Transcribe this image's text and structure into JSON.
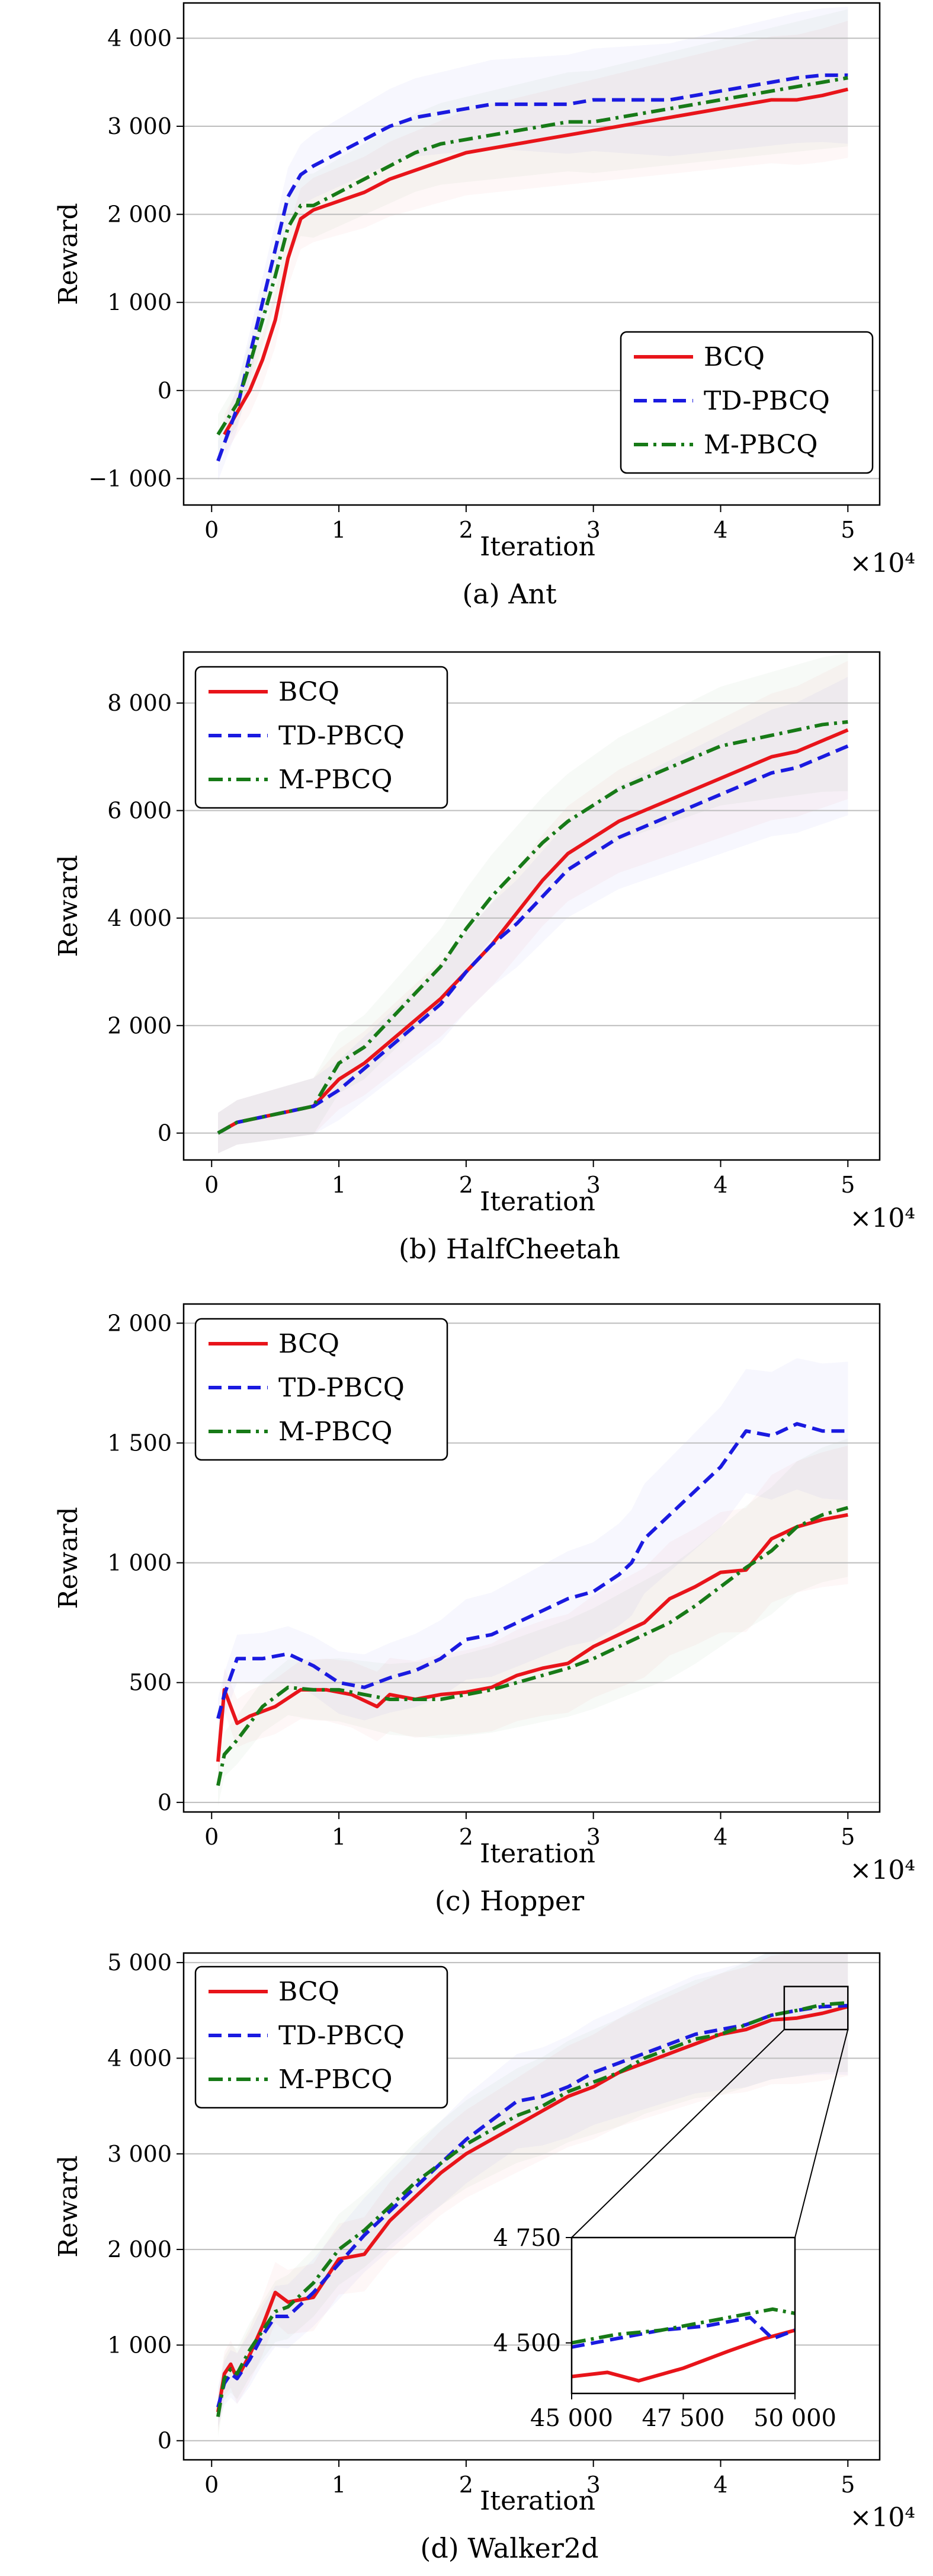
{
  "colors": {
    "BCQ": "#e8141a",
    "TD-PBCQ": "#1a1ae0",
    "M-PBCQ": "#177a17",
    "grid": "#bdbdbd"
  },
  "chart_data": [
    {
      "type": "line",
      "caption": "(a) Ant",
      "xlabel": "Iteration",
      "ylabel": "Reward",
      "multiplier": "×10⁴",
      "xlim": [
        -0.22,
        5.25
      ],
      "ylim": [
        -1300,
        4400
      ],
      "xticks": [
        0,
        1,
        2,
        3,
        4,
        5
      ],
      "xtick_labels": [
        "0",
        "1",
        "2",
        "3",
        "4",
        "5"
      ],
      "yticks": [
        -1000,
        0,
        1000,
        2000,
        3000,
        4000
      ],
      "ytick_labels": [
        "−1 000",
        "0",
        "1 000",
        "2 000",
        "3 000",
        "4 000"
      ],
      "grid": "horizontal",
      "legend": "lower-right",
      "series": [
        {
          "name": "BCQ",
          "style": "solid",
          "x": [
            0.1,
            0.2,
            0.3,
            0.4,
            0.5,
            0.6,
            0.7,
            0.8,
            1.0,
            1.2,
            1.4,
            1.6,
            1.8,
            2.0,
            2.2,
            2.4,
            2.6,
            2.8,
            3.0,
            3.2,
            3.4,
            3.6,
            3.8,
            4.0,
            4.2,
            4.4,
            4.6,
            4.8,
            5.0
          ],
          "y": [
            -500,
            -250,
            0,
            350,
            800,
            1500,
            1950,
            2050,
            2150,
            2250,
            2400,
            2500,
            2600,
            2700,
            2750,
            2800,
            2850,
            2900,
            2950,
            3000,
            3050,
            3100,
            3150,
            3200,
            3250,
            3300,
            3300,
            3350,
            3420
          ]
        },
        {
          "name": "TD-PBCQ",
          "style": "dashed",
          "x": [
            0.05,
            0.2,
            0.3,
            0.4,
            0.5,
            0.6,
            0.7,
            0.8,
            1.0,
            1.2,
            1.4,
            1.6,
            1.8,
            2.0,
            2.2,
            2.4,
            2.6,
            2.8,
            3.0,
            3.2,
            3.4,
            3.6,
            3.8,
            4.0,
            4.2,
            4.4,
            4.6,
            4.8,
            5.0
          ],
          "y": [
            -800,
            -200,
            400,
            1000,
            1600,
            2200,
            2450,
            2550,
            2700,
            2850,
            3000,
            3100,
            3150,
            3200,
            3250,
            3250,
            3250,
            3250,
            3300,
            3300,
            3300,
            3300,
            3350,
            3400,
            3450,
            3500,
            3550,
            3580,
            3580
          ]
        },
        {
          "name": "M-PBCQ",
          "style": "dashdot",
          "x": [
            0.05,
            0.2,
            0.3,
            0.4,
            0.5,
            0.6,
            0.7,
            0.8,
            1.0,
            1.2,
            1.4,
            1.6,
            1.8,
            2.0,
            2.2,
            2.4,
            2.6,
            2.8,
            3.0,
            3.2,
            3.4,
            3.6,
            3.8,
            4.0,
            4.2,
            4.4,
            4.6,
            4.8,
            5.0
          ],
          "y": [
            -500,
            -150,
            300,
            800,
            1300,
            1850,
            2100,
            2100,
            2250,
            2400,
            2550,
            2700,
            2800,
            2850,
            2900,
            2950,
            3000,
            3050,
            3050,
            3100,
            3150,
            3200,
            3250,
            3300,
            3350,
            3400,
            3450,
            3500,
            3550
          ]
        }
      ]
    },
    {
      "type": "line",
      "caption": "(b) HalfCheetah",
      "xlabel": "Iteration",
      "ylabel": "Reward",
      "multiplier": "×10⁴",
      "xlim": [
        -0.22,
        5.25
      ],
      "ylim": [
        -500,
        8950
      ],
      "xticks": [
        0,
        1,
        2,
        3,
        4,
        5
      ],
      "xtick_labels": [
        "0",
        "1",
        "2",
        "3",
        "4",
        "5"
      ],
      "yticks": [
        0,
        2000,
        4000,
        6000,
        8000
      ],
      "ytick_labels": [
        "0",
        "2 000",
        "4 000",
        "6 000",
        "8 000"
      ],
      "grid": "horizontal",
      "legend": "upper-left",
      "series": [
        {
          "name": "BCQ",
          "style": "solid",
          "x": [
            0.05,
            0.2,
            0.4,
            0.6,
            0.8,
            1.0,
            1.2,
            1.4,
            1.6,
            1.8,
            2.0,
            2.2,
            2.4,
            2.6,
            2.8,
            3.0,
            3.2,
            3.4,
            3.6,
            3.8,
            4.0,
            4.2,
            4.4,
            4.6,
            4.8,
            5.0
          ],
          "y": [
            0,
            200,
            300,
            400,
            500,
            1000,
            1300,
            1700,
            2100,
            2500,
            3000,
            3500,
            4100,
            4700,
            5200,
            5500,
            5800,
            6000,
            6200,
            6400,
            6600,
            6800,
            7000,
            7100,
            7300,
            7500
          ]
        },
        {
          "name": "TD-PBCQ",
          "style": "dashed",
          "x": [
            0.05,
            0.2,
            0.4,
            0.6,
            0.8,
            1.0,
            1.2,
            1.4,
            1.6,
            1.8,
            2.0,
            2.2,
            2.4,
            2.6,
            2.8,
            3.0,
            3.2,
            3.4,
            3.6,
            3.8,
            4.0,
            4.2,
            4.4,
            4.6,
            4.8,
            5.0
          ],
          "y": [
            0,
            200,
            300,
            400,
            500,
            800,
            1200,
            1600,
            2000,
            2400,
            3000,
            3500,
            3900,
            4400,
            4900,
            5200,
            5500,
            5700,
            5900,
            6100,
            6300,
            6500,
            6700,
            6800,
            7000,
            7200
          ]
        },
        {
          "name": "M-PBCQ",
          "style": "dashdot",
          "x": [
            0.05,
            0.2,
            0.4,
            0.6,
            0.8,
            1.0,
            1.2,
            1.4,
            1.6,
            1.8,
            2.0,
            2.2,
            2.4,
            2.6,
            2.8,
            3.0,
            3.2,
            3.4,
            3.6,
            3.8,
            4.0,
            4.2,
            4.4,
            4.6,
            4.8,
            5.0
          ],
          "y": [
            0,
            200,
            300,
            400,
            500,
            1300,
            1600,
            2100,
            2600,
            3100,
            3800,
            4400,
            4900,
            5400,
            5800,
            6100,
            6400,
            6600,
            6800,
            7000,
            7200,
            7300,
            7400,
            7500,
            7600,
            7650
          ]
        }
      ]
    },
    {
      "type": "line",
      "caption": "(c) Hopper",
      "xlabel": "Iteration",
      "ylabel": "Reward",
      "multiplier": "×10⁴",
      "xlim": [
        -0.22,
        5.25
      ],
      "ylim": [
        -40,
        2080
      ],
      "xticks": [
        0,
        1,
        2,
        3,
        4,
        5
      ],
      "xtick_labels": [
        "0",
        "1",
        "2",
        "3",
        "4",
        "5"
      ],
      "yticks": [
        0,
        500,
        1000,
        1500,
        2000
      ],
      "ytick_labels": [
        "0",
        "500",
        "1 000",
        "1 500",
        "2 000"
      ],
      "grid": "horizontal",
      "legend": "upper-left",
      "series": [
        {
          "name": "BCQ",
          "style": "solid",
          "x": [
            0.05,
            0.1,
            0.2,
            0.3,
            0.5,
            0.7,
            0.9,
            1.1,
            1.3,
            1.4,
            1.6,
            1.8,
            2.0,
            2.2,
            2.4,
            2.6,
            2.8,
            3.0,
            3.2,
            3.4,
            3.6,
            3.8,
            4.0,
            4.2,
            4.4,
            4.6,
            4.8,
            5.0
          ],
          "y": [
            170,
            470,
            330,
            360,
            400,
            470,
            470,
            450,
            400,
            450,
            430,
            450,
            460,
            480,
            530,
            560,
            580,
            650,
            700,
            750,
            850,
            900,
            960,
            970,
            1100,
            1150,
            1180,
            1200
          ]
        },
        {
          "name": "TD-PBCQ",
          "style": "dashed",
          "x": [
            0.05,
            0.1,
            0.2,
            0.4,
            0.6,
            0.8,
            1.0,
            1.2,
            1.4,
            1.6,
            1.8,
            2.0,
            2.2,
            2.4,
            2.6,
            2.8,
            3.0,
            3.2,
            3.3,
            3.4,
            3.6,
            3.8,
            4.0,
            4.2,
            4.4,
            4.6,
            4.8,
            5.0
          ],
          "y": [
            350,
            450,
            600,
            600,
            620,
            570,
            500,
            480,
            520,
            550,
            600,
            680,
            700,
            750,
            800,
            850,
            880,
            950,
            1000,
            1100,
            1200,
            1300,
            1400,
            1550,
            1530,
            1580,
            1550,
            1550
          ]
        },
        {
          "name": "M-PBCQ",
          "style": "dashdot",
          "x": [
            0.05,
            0.1,
            0.2,
            0.4,
            0.6,
            0.8,
            1.0,
            1.2,
            1.4,
            1.6,
            1.8,
            2.0,
            2.2,
            2.4,
            2.6,
            2.8,
            3.0,
            3.2,
            3.4,
            3.6,
            3.8,
            4.0,
            4.2,
            4.4,
            4.6,
            4.8,
            5.0
          ],
          "y": [
            70,
            200,
            260,
            400,
            480,
            470,
            470,
            450,
            430,
            430,
            430,
            450,
            470,
            500,
            530,
            560,
            600,
            650,
            700,
            750,
            820,
            900,
            980,
            1050,
            1150,
            1200,
            1230
          ]
        }
      ]
    },
    {
      "type": "line",
      "caption": "(d) Walker2d",
      "xlabel": "Iteration",
      "ylabel": "Reward",
      "multiplier": "×10⁴",
      "xlim": [
        -0.22,
        5.25
      ],
      "ylim": [
        -200,
        5100
      ],
      "xticks": [
        0,
        1,
        2,
        3,
        4,
        5
      ],
      "xtick_labels": [
        "0",
        "1",
        "2",
        "3",
        "4",
        "5"
      ],
      "yticks": [
        0,
        1000,
        2000,
        3000,
        4000,
        5000
      ],
      "ytick_labels": [
        "0",
        "1 000",
        "2 000",
        "3 000",
        "4 000",
        "5 000"
      ],
      "grid": "horizontal",
      "legend": "upper-left",
      "zoom_box": {
        "x": [
          4.5,
          5.0
        ],
        "y": [
          4300,
          4750
        ]
      },
      "inset": {
        "xlim": [
          45000,
          50000
        ],
        "ylim": [
          4380,
          4750
        ],
        "xticks": [
          45000,
          47500,
          50000
        ],
        "xtick_labels": [
          "45 000",
          "47 500",
          "50 000"
        ],
        "yticks": [
          4500,
          4750
        ],
        "ytick_labels": [
          "4 500",
          "4 750"
        ],
        "series": [
          {
            "name": "BCQ",
            "x": [
              45000,
              45800,
              46500,
              47500,
              48500,
              49300,
              50000
            ],
            "y": [
              4420,
              4430,
              4410,
              4440,
              4480,
              4510,
              4530
            ]
          },
          {
            "name": "TD-PBCQ",
            "x": [
              45000,
              46000,
              47000,
              48000,
              49000,
              49500,
              50000
            ],
            "y": [
              4490,
              4510,
              4530,
              4540,
              4560,
              4510,
              4530
            ]
          },
          {
            "name": "M-PBCQ",
            "x": [
              45000,
              46000,
              47000,
              48000,
              49000,
              49500,
              50000
            ],
            "y": [
              4500,
              4520,
              4530,
              4550,
              4570,
              4580,
              4570
            ]
          }
        ]
      },
      "series": [
        {
          "name": "BCQ",
          "style": "solid",
          "x": [
            0.05,
            0.1,
            0.15,
            0.2,
            0.3,
            0.4,
            0.5,
            0.6,
            0.8,
            1.0,
            1.2,
            1.4,
            1.6,
            1.8,
            2.0,
            2.2,
            2.4,
            2.6,
            2.8,
            3.0,
            3.2,
            3.4,
            3.6,
            3.8,
            4.0,
            4.2,
            4.4,
            4.6,
            4.8,
            5.0
          ],
          "y": [
            300,
            700,
            800,
            650,
            900,
            1200,
            1550,
            1450,
            1500,
            1900,
            1950,
            2300,
            2550,
            2800,
            3000,
            3150,
            3300,
            3450,
            3600,
            3700,
            3850,
            3950,
            4050,
            4150,
            4250,
            4300,
            4400,
            4420,
            4470,
            4540
          ]
        },
        {
          "name": "TD-PBCQ",
          "style": "dashed",
          "x": [
            0.05,
            0.1,
            0.15,
            0.2,
            0.3,
            0.4,
            0.5,
            0.6,
            0.8,
            1.0,
            1.2,
            1.4,
            1.6,
            1.8,
            2.0,
            2.2,
            2.4,
            2.6,
            2.8,
            3.0,
            3.2,
            3.4,
            3.6,
            3.8,
            4.0,
            4.2,
            4.4,
            4.6,
            4.8,
            5.0
          ],
          "y": [
            350,
            600,
            700,
            650,
            850,
            1100,
            1300,
            1300,
            1550,
            1850,
            2150,
            2400,
            2650,
            2900,
            3150,
            3350,
            3550,
            3600,
            3700,
            3850,
            3950,
            4050,
            4150,
            4250,
            4300,
            4350,
            4450,
            4500,
            4540,
            4550
          ]
        },
        {
          "name": "M-PBCQ",
          "style": "dashdot",
          "x": [
            0.05,
            0.1,
            0.15,
            0.2,
            0.3,
            0.4,
            0.5,
            0.6,
            0.8,
            1.0,
            1.2,
            1.4,
            1.6,
            1.8,
            2.0,
            2.2,
            2.4,
            2.6,
            2.8,
            3.0,
            3.2,
            3.4,
            3.6,
            3.8,
            4.0,
            4.2,
            4.4,
            4.6,
            4.8,
            5.0
          ],
          "y": [
            250,
            650,
            750,
            700,
            950,
            1150,
            1350,
            1400,
            1650,
            2000,
            2200,
            2450,
            2700,
            2900,
            3100,
            3250,
            3400,
            3500,
            3650,
            3750,
            3850,
            4000,
            4100,
            4200,
            4250,
            4350,
            4450,
            4500,
            4560,
            4580
          ]
        }
      ]
    }
  ]
}
